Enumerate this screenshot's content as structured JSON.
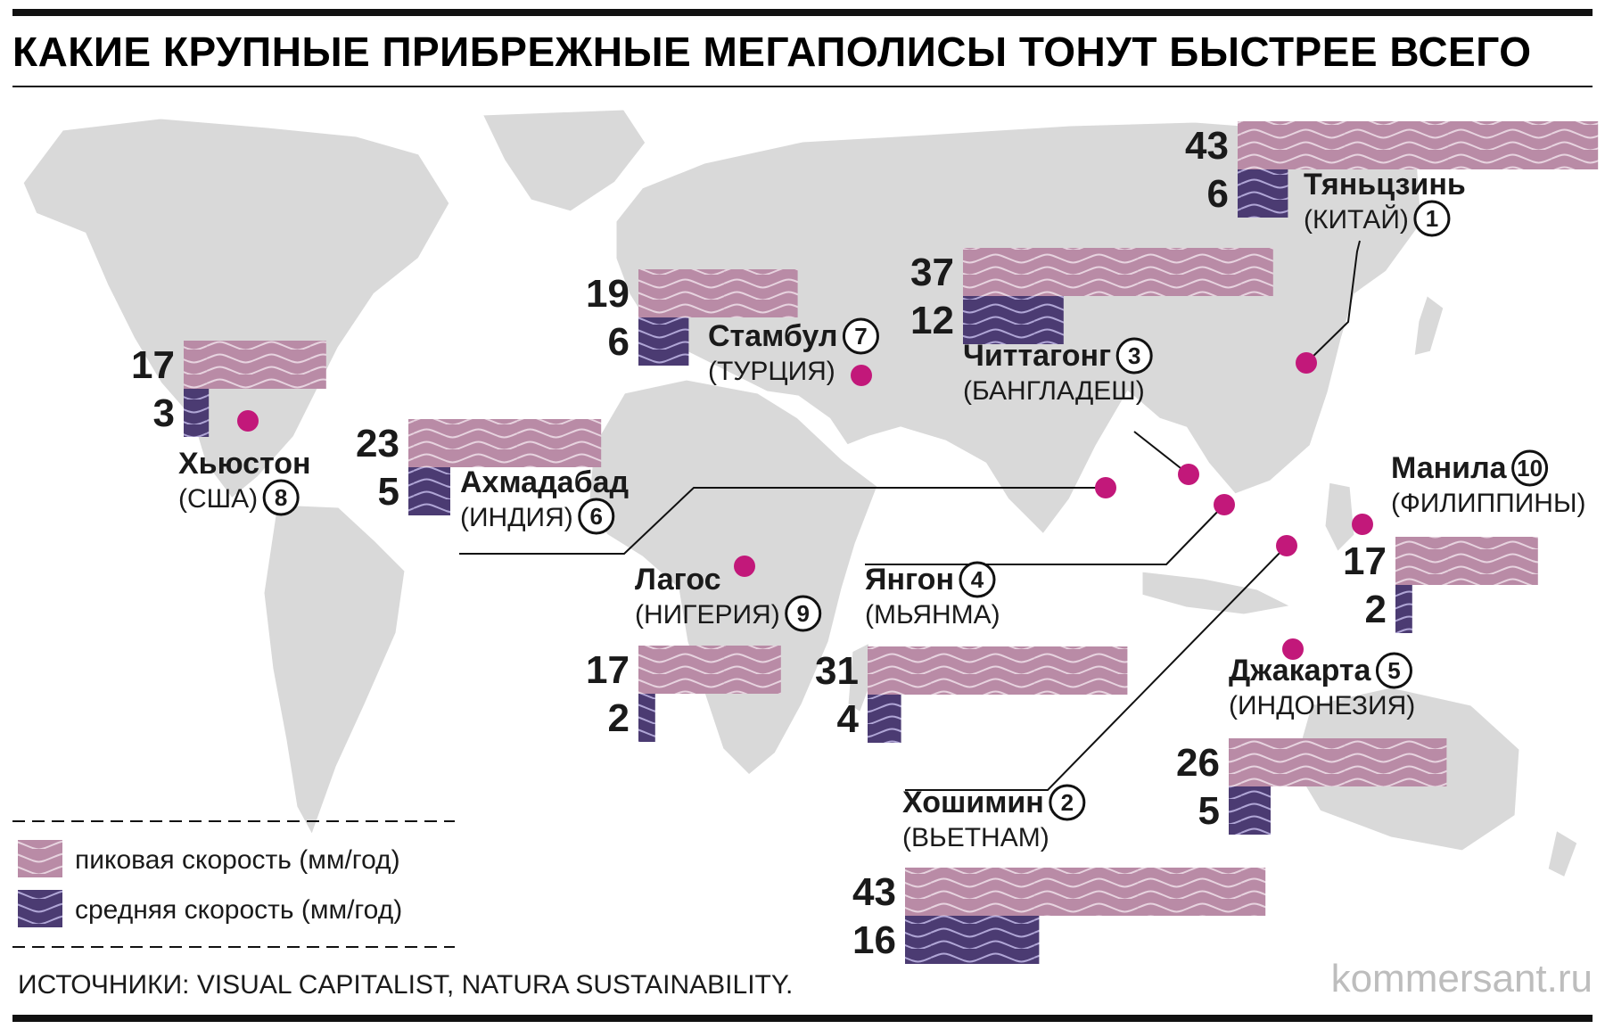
{
  "title": "КАКИЕ КРУПНЫЕ ПРИБРЕЖНЫЕ МЕГАПОЛИСЫ ТОНУТ БЫСТРЕЕ ВСЕГО",
  "source": "ИСТОЧНИКИ: VISUAL CAPITALIST, NATURA SUSTAINABILITY.",
  "brand": "kommersant.ru",
  "colors": {
    "peak": "#b98ba6",
    "avg": "#4b3b72",
    "dot": "#c2187a",
    "map": "#d9d9d9"
  },
  "chart_data": {
    "type": "bar",
    "unit": "мм/год",
    "series": [
      {
        "name": "пиковая скорость (мм/год)",
        "key": "peak"
      },
      {
        "name": "средняя скорость (мм/год)",
        "key": "avg"
      }
    ],
    "cities": [
      {
        "rank": "1",
        "city": "Тяньцзинь",
        "country": "(КИТАЙ)",
        "peak": 43,
        "avg": 6
      },
      {
        "rank": "2",
        "city": "Хошимин",
        "country": "(ВЬЕТНАМ)",
        "peak": 43,
        "avg": 16
      },
      {
        "rank": "3",
        "city": "Читтагонг",
        "country": "(БАНГЛАДЕШ)",
        "peak": 37,
        "avg": 12
      },
      {
        "rank": "4",
        "city": "Янгон",
        "country": "(МЬЯНМА)",
        "peak": 31,
        "avg": 4
      },
      {
        "rank": "5",
        "city": "Джакарта",
        "country": "(ИНДОНЕЗИЯ)",
        "peak": 26,
        "avg": 5
      },
      {
        "rank": "6",
        "city": "Ахмадабад",
        "country": "(ИНДИЯ)",
        "peak": 23,
        "avg": 5
      },
      {
        "rank": "7",
        "city": "Стамбул",
        "country": "(ТУРЦИЯ)",
        "peak": 19,
        "avg": 6
      },
      {
        "rank": "8",
        "city": "Хьюстон",
        "country": "(США)",
        "peak": 17,
        "avg": 3
      },
      {
        "rank": "9",
        "city": "Лагос",
        "country": "(НИГЕРИЯ)",
        "peak": 17,
        "avg": 2
      },
      {
        "rank": "10",
        "city": "Манила",
        "country": "(ФИЛИППИНЫ)",
        "peak": 17,
        "avg": 2
      }
    ]
  }
}
